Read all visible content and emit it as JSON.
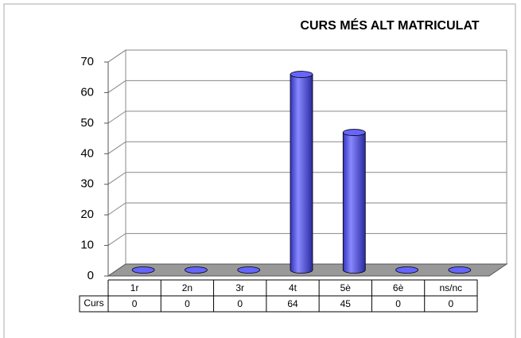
{
  "chart_data": {
    "type": "bar",
    "title": "CURS MÉS ALT MATRICULAT",
    "categories": [
      "1r",
      "2n",
      "3r",
      "4t",
      "5è",
      "6è",
      "ns/nc"
    ],
    "series": [
      {
        "name": "Curs",
        "color": "#6666ff",
        "values": [
          0,
          0,
          0,
          64,
          45,
          0,
          0
        ]
      }
    ],
    "ylim": [
      0,
      70
    ],
    "yticks": [
      0,
      10,
      20,
      30,
      40,
      50,
      60,
      70
    ],
    "grid": true
  }
}
